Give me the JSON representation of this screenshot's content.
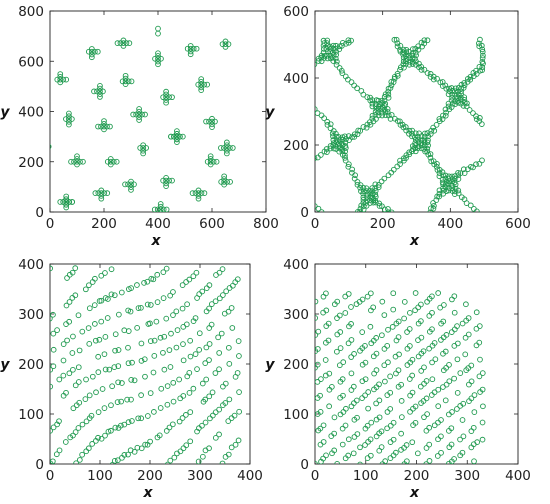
{
  "chart_data": [
    {
      "type": "scatter",
      "pattern": "cross-clusters",
      "xlabel": "x",
      "ylabel": "y",
      "xlim": [
        0,
        800
      ],
      "ylim": [
        0,
        800
      ],
      "xticks": [
        "0",
        "200",
        "400",
        "600",
        "800"
      ],
      "yticks": [
        "0",
        "200",
        "400",
        "600",
        "800"
      ],
      "cluster_centers": [
        [
          155,
          638
        ],
        [
          272,
          672
        ],
        [
          400,
          610
        ],
        [
          521,
          650
        ],
        [
          650,
          668
        ],
        [
          38,
          527
        ],
        [
          185,
          480
        ],
        [
          280,
          520
        ],
        [
          430,
          457
        ],
        [
          560,
          507
        ],
        [
          70,
          370
        ],
        [
          200,
          340
        ],
        [
          330,
          388
        ],
        [
          470,
          300
        ],
        [
          600,
          360
        ],
        [
          100,
          200
        ],
        [
          225,
          200
        ],
        [
          345,
          255
        ],
        [
          470,
          300
        ],
        [
          595,
          200
        ],
        [
          655,
          255
        ],
        [
          60,
          40
        ],
        [
          190,
          75
        ],
        [
          300,
          110
        ],
        [
          430,
          125
        ],
        [
          550,
          75
        ],
        [
          645,
          120
        ],
        [
          410,
          10
        ],
        [
          60,
          40
        ]
      ],
      "extra_points": [
        [
          400,
          730
        ],
        [
          400,
          710
        ],
        [
          -5,
          260
        ]
      ],
      "marker": "circle",
      "color": "#1f9a4f"
    },
    {
      "type": "scatter",
      "pattern": "labyrinth",
      "xlabel": "x",
      "ylabel": "y",
      "xlim": [
        0,
        600
      ],
      "ylim": [
        0,
        600
      ],
      "xticks": [
        "0",
        "200",
        "400",
        "600"
      ],
      "yticks": [
        "0",
        "200",
        "400",
        "600"
      ],
      "marker": "circle",
      "color": "#1f9a4f"
    },
    {
      "type": "scatter",
      "pattern": "irregular-stripes",
      "xlabel": "x",
      "ylabel": "y",
      "xlim": [
        0,
        400
      ],
      "ylim": [
        0,
        400
      ],
      "xticks": [
        "0",
        "100",
        "200",
        "300",
        "400"
      ],
      "yticks": [
        "0",
        "100",
        "200",
        "300",
        "400"
      ],
      "marker": "circle",
      "color": "#1f9a4f"
    },
    {
      "type": "scatter",
      "pattern": "diagonal-stripes",
      "xlabel": "x",
      "ylabel": "y",
      "xlim": [
        0,
        400
      ],
      "ylim": [
        0,
        400
      ],
      "xticks": [
        "0",
        "100",
        "200",
        "300",
        "400"
      ],
      "yticks": [
        "0",
        "100",
        "200",
        "300",
        "400"
      ],
      "marker": "circle",
      "color": "#1f9a4f"
    }
  ]
}
